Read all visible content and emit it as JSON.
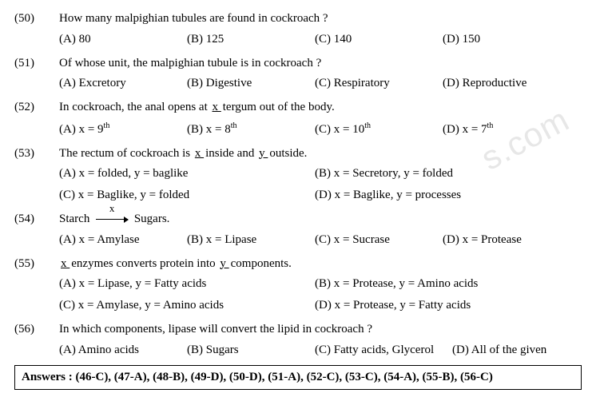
{
  "watermark": "s.com",
  "questions": [
    {
      "num": "(50)",
      "text": "How many malpighian tubules are found in cockroach ?",
      "layout": "four",
      "opts": [
        "(A) 80",
        "(B) 125",
        "(C) 140",
        "(D) 150"
      ]
    },
    {
      "num": "(51)",
      "text": "Of whose unit, the malpighian tubule is in cockroach ?",
      "layout": "four",
      "opts": [
        "(A) Excretory",
        "(B) Digestive",
        "(C) Respiratory",
        "(D) Reproductive"
      ]
    },
    {
      "num": "(52)",
      "text_pre": "In cockroach, the anal opens at ",
      "blank1": " x ",
      "text_post": " tergum out of the body.",
      "layout": "four-sup",
      "opts": [
        {
          "pre": "(A) x = 9",
          "sup": "th"
        },
        {
          "pre": "(B) x = 8",
          "sup": "th"
        },
        {
          "pre": "(C) x = 10",
          "sup": "th"
        },
        {
          "pre": "(D) x = 7",
          "sup": "th"
        }
      ]
    },
    {
      "num": "(53)",
      "text_pre": "The rectum of cockroach is ",
      "blank1": " x ",
      "text_mid": " inside and ",
      "blank2": " y ",
      "text_post": " outside.",
      "layout": "two",
      "opts": [
        "(A) x = folded, y = baglike",
        "(B) x = Secretory, y = folded",
        "(C) x = Baglike, y = folded",
        "(D) x = Baglike, y = processes"
      ]
    },
    {
      "num": "(54)",
      "starch_pre": "Starch ",
      "arrow_label": "x",
      "starch_post": " Sugars.",
      "layout": "four",
      "opts": [
        "(A) x = Amylase",
        "(B) x = Lipase",
        "(C) x = Sucrase",
        "(D) x = Protease"
      ]
    },
    {
      "num": "(55)",
      "blank1": " x ",
      "text_mid": " enzymes converts protein into ",
      "blank2": " y ",
      "text_post": " components.",
      "layout": "two",
      "opts": [
        "(A) x = Lipase, y = Fatty acids",
        "(B) x = Protease, y = Amino acids",
        "(C) x = Amylase, y = Amino acids",
        "(D) x = Protease, y = Fatty acids"
      ]
    },
    {
      "num": "(56)",
      "text": "In which components, lipase will convert the lipid in cockroach ?",
      "layout": "four-wide",
      "opts": [
        "(A) Amino acids",
        "(B) Sugars",
        "(C) Fatty acids, Glycerol",
        "(D) All of the given"
      ]
    }
  ],
  "answers": "Answers :   (46-C), (47-A), (48-B), (49-D), (50-D), (51-A), (52-C), (53-C), (54-A), (55-B), (56-C)"
}
